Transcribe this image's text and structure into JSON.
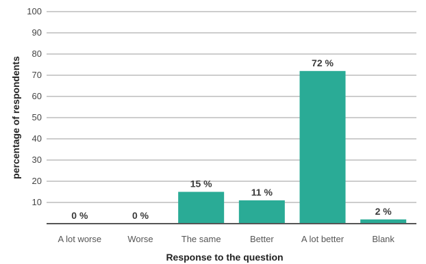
{
  "chart_data": {
    "type": "bar",
    "categories": [
      "A lot worse",
      "Worse",
      "The same",
      "Better",
      "A lot better",
      "Blank"
    ],
    "values": [
      0,
      0,
      15,
      11,
      72,
      2
    ],
    "data_labels": [
      "0 %",
      "0 %",
      "15 %",
      "11 %",
      "72 %",
      "2 %"
    ],
    "xlabel": "Response to the question",
    "ylabel": "percentage of respondents",
    "ylim": [
      0,
      100
    ],
    "yticks": [
      10,
      20,
      30,
      40,
      50,
      60,
      70,
      80,
      90,
      100
    ],
    "grid": true,
    "legend": "none",
    "bar_color": "#2aab96"
  }
}
